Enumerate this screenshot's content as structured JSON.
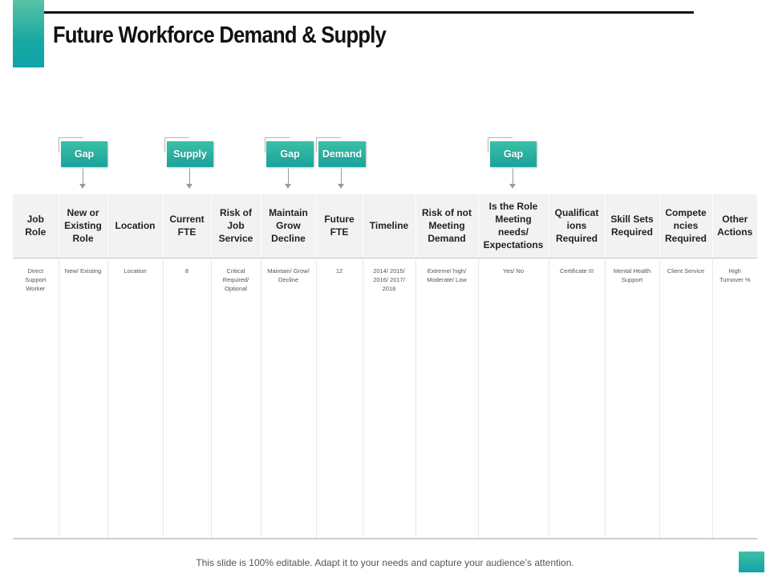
{
  "header": {
    "title": "Future Workforce Demand & Supply"
  },
  "tags": [
    {
      "label": "Gap"
    },
    {
      "label": "Supply"
    },
    {
      "label": "Gap"
    },
    {
      "label": "Demand"
    },
    {
      "label": "Gap"
    }
  ],
  "table": {
    "columns": [
      "Job Role",
      "New or Existing Role",
      "Location",
      "Current FTE",
      "Risk of Job Service",
      "Maintain Grow Decline",
      "Future FTE",
      "Timeline",
      "Risk of not Meeting Demand",
      "Is the Role Meeting needs/ Expectations",
      "Qualificat ions Required",
      "Skill Sets Required",
      "Compete ncies Required",
      "Other Actions"
    ],
    "row": [
      "Direct Support Worker",
      "New/ Existing",
      "Location",
      "8",
      "Critical Required/ Optional",
      "Maintain/ Grow/ Decline",
      "12",
      "2014/ 2015/ 2016/ 2017/ 2018",
      "Extreme/ high/ Moderate/ Low",
      "Yes/ No",
      "Certificate III",
      "Mental Health Support",
      "Client Service",
      "High Turnover %"
    ]
  },
  "footer": {
    "note": "This slide is 100% editable. Adapt it to your needs and capture your audience’s attention."
  },
  "colors": {
    "accent": "#1aa39c",
    "accent_light": "#59c2a5",
    "header_fill": "#f2f2f2"
  }
}
